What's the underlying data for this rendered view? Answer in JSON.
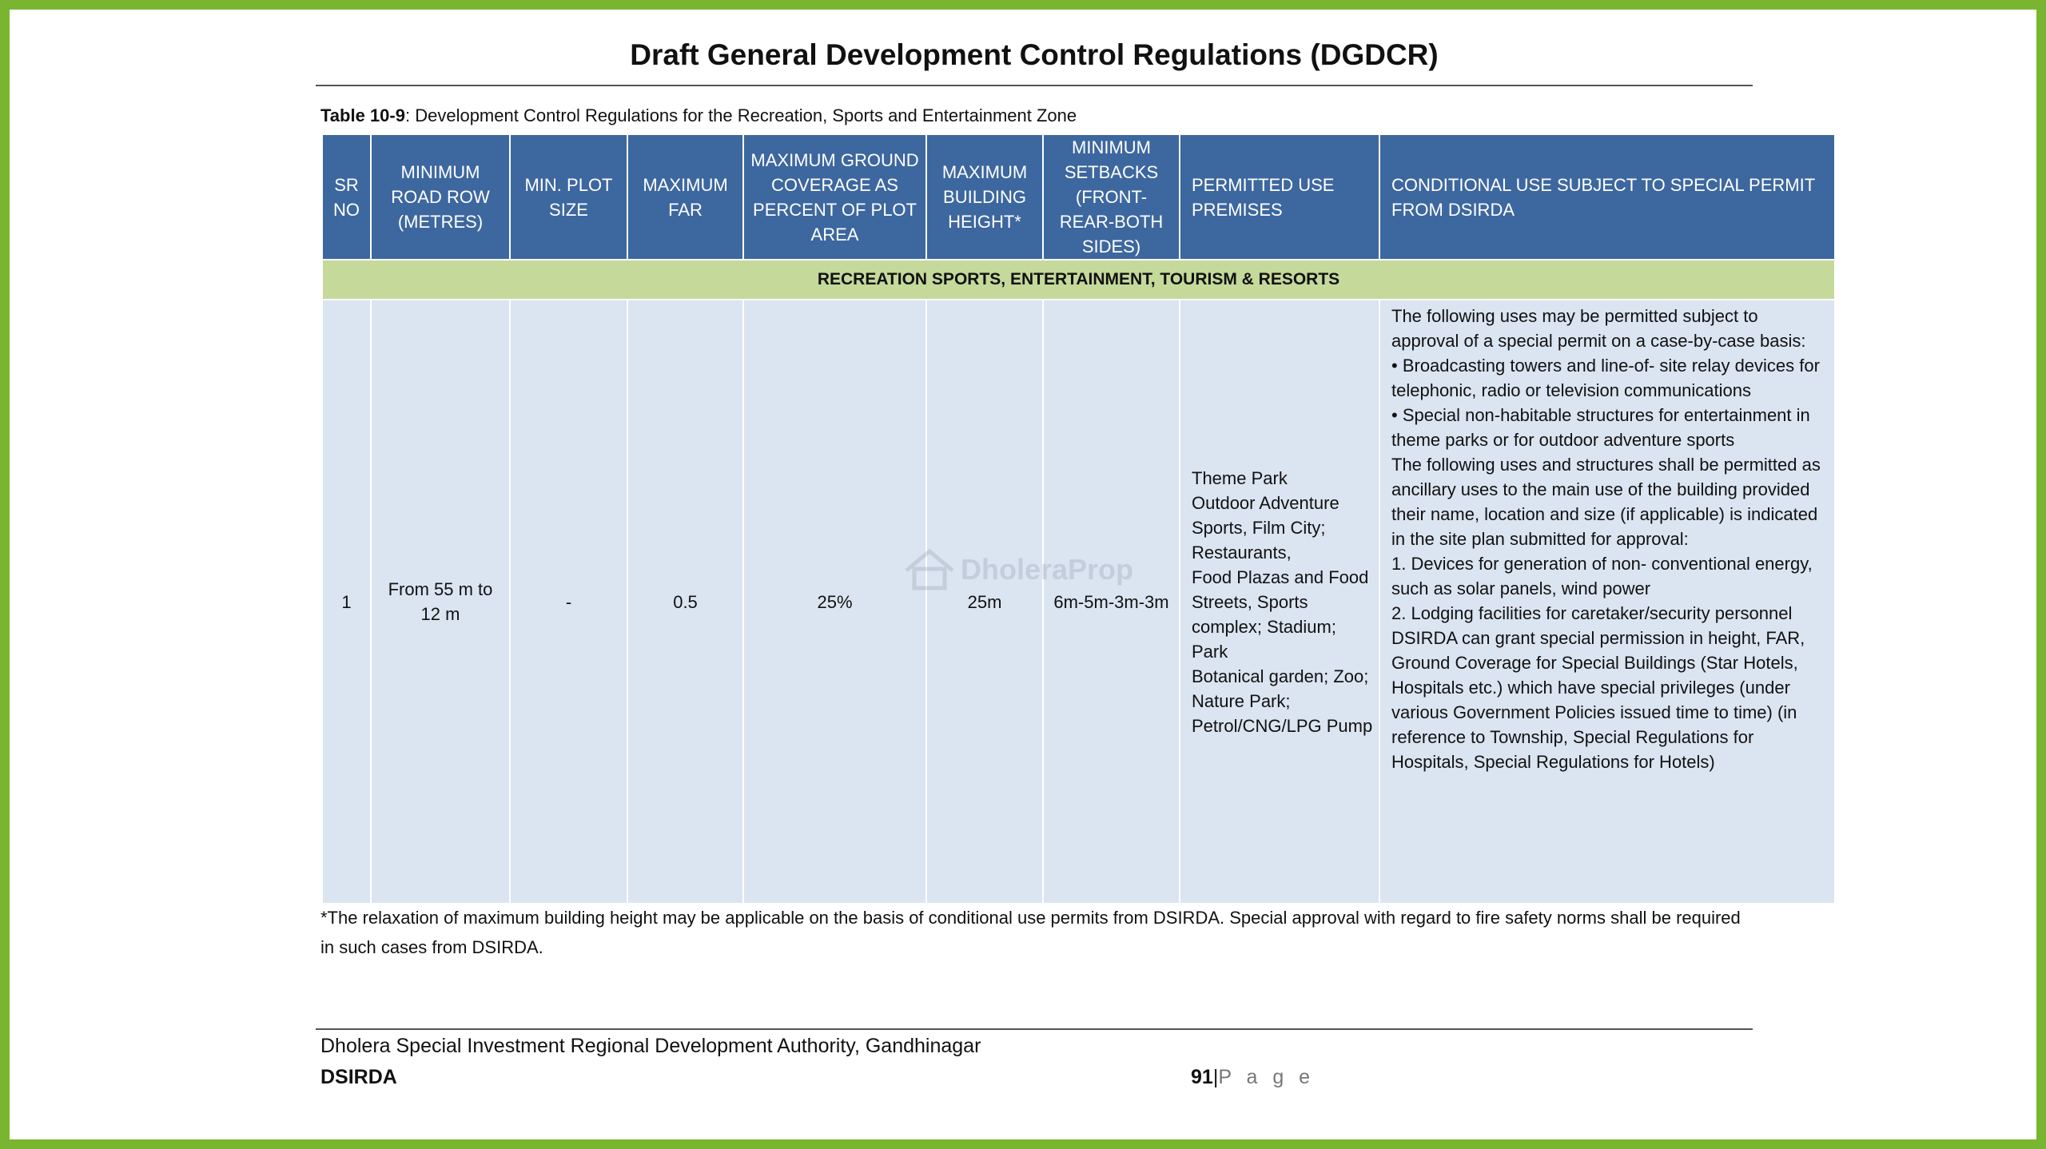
{
  "colors": {
    "frame": "#7ab531",
    "header_bg": "#3d679f",
    "group_bg": "#c5d99b",
    "cell_bg": "#dbe4f1"
  },
  "document": {
    "title": "Draft General Development Control Regulations (DGDCR)",
    "caption_label": "Table 10-9",
    "caption_text": ": Development Control Regulations for the Recreation, Sports and Entertainment Zone"
  },
  "table": {
    "headers": [
      "SR NO",
      "MINIMUM ROAD ROW (METRES)",
      "MIN. PLOT SIZE",
      "MAXIMUM FAR",
      "MAXIMUM GROUND COVERAGE AS PERCENT OF PLOT AREA",
      "MAXIMUM BUILDING HEIGHT*",
      "MINIMUM SETBACKS (FRONT-REAR-BOTH SIDES)",
      "PERMITTED USE PREMISES",
      "CONDITIONAL USE SUBJECT TO SPECIAL PERMIT FROM DSIRDA"
    ],
    "group_row": "RECREATION SPORTS, ENTERTAINMENT, TOURISM & RESORTS",
    "row": {
      "sr_no": "1",
      "road_row": "From 55 m to 12 m",
      "min_plot_size": "-",
      "max_far": "0.5",
      "ground_coverage": "25%",
      "building_height": "25m",
      "setbacks": "6m-5m-3m-3m",
      "permitted_use": [
        "Theme Park",
        "Outdoor Adventure Sports, Film City;",
        "Restaurants,",
        "Food Plazas and Food Streets, Sports complex; Stadium;",
        "Park",
        "Botanical garden; Zoo; Nature Park;",
        "Petrol/CNG/LPG Pump"
      ],
      "conditional_use": [
        "The following uses may be permitted subject to approval of a special permit on a case-by-case basis:",
        "• Broadcasting towers and line-of- site relay devices for telephonic,  radio or television communications",
        "• Special non-habitable structures  for entertainment in theme parks  or for outdoor adventure sports",
        "The following uses and structures shall be permitted as ancillary uses to the main use of the building provided their name, location and size (if applicable) is indicated in the site plan submitted for approval:",
        "1.  Devices for generation of non- conventional energy, such as solar  panels, wind power",
        "2.  Lodging facilities for  caretaker/security personnel",
        "DSIRDA can grant special permission in height, FAR, Ground Coverage for Special Buildings (Star Hotels, Hospitals etc.) which have special privileges (under various Government Policies issued time to time) (in reference to Township, Special Regulations for Hospitals, Special Regulations for Hotels)"
      ]
    }
  },
  "watermark": "DholeraProp",
  "footnote": "*The relaxation of maximum building height may be applicable on the basis of conditional use permits from DSIRDA. Special approval with regard to fire safety norms shall be required in such cases from DSIRDA.",
  "footer": {
    "authority": "Dholera Special Investment Regional Development Authority, Gandhinagar",
    "org": "DSIRDA",
    "page_number": "91",
    "page_separator": "|",
    "page_label": "P a g e"
  }
}
